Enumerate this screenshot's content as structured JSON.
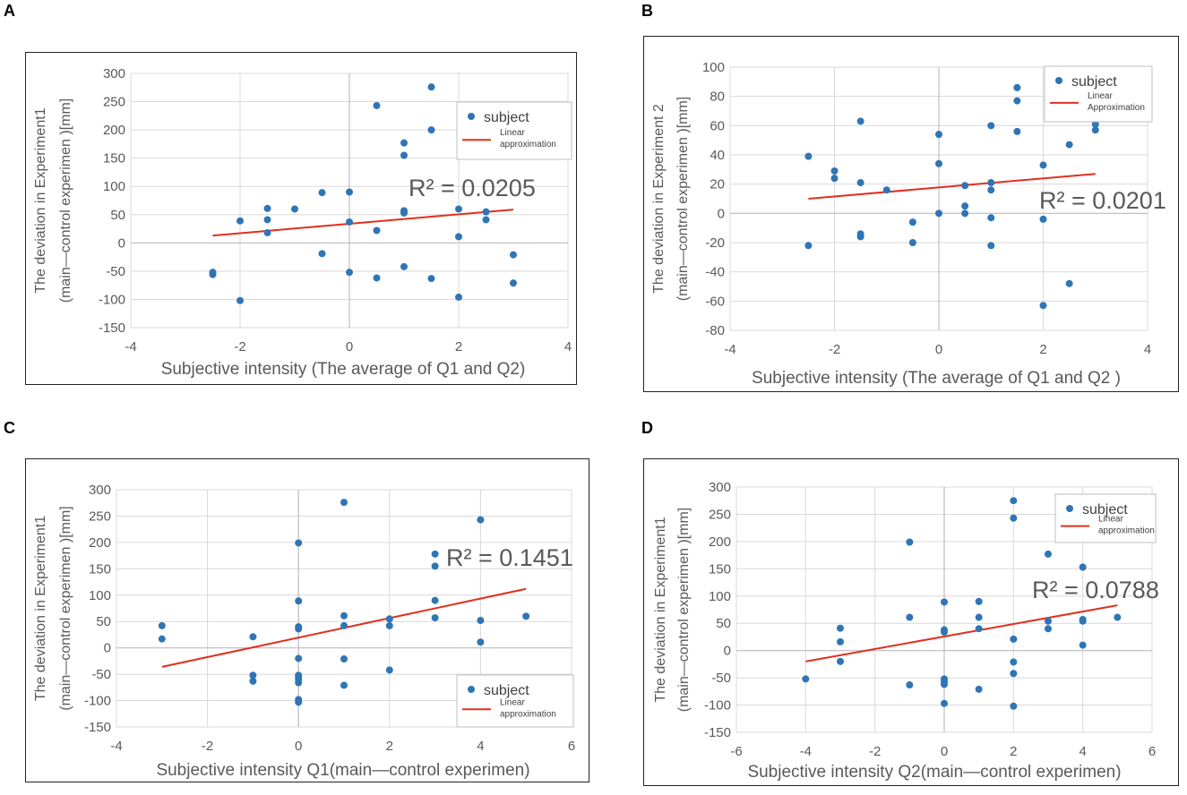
{
  "colors": {
    "point": "#2e75b6",
    "line": "#e0301e",
    "grid": "#d9d9d9",
    "axis": "#bfbfbf",
    "text": "#595959"
  },
  "chart_data": [
    {
      "panel": "A",
      "type": "scatter",
      "xlabel": "Subjective intensity (The average of Q1 and Q2)",
      "ylabel_line1": "The deviation in Experiment1",
      "ylabel_line2": "(main—control experimen )[mm]",
      "xlim": [
        -4,
        4
      ],
      "ylim": [
        -150,
        300
      ],
      "xticks": [
        -4,
        -2,
        0,
        2,
        4
      ],
      "yticks": [
        300,
        250,
        200,
        150,
        100,
        50,
        0,
        -50,
        -100,
        -150
      ],
      "legend": {
        "points": "subject",
        "line_1": "Linear",
        "line_2": "approximation"
      },
      "r2": "R² = 0.0205",
      "trend": [
        [
          -2.5,
          13
        ],
        [
          3,
          59
        ]
      ],
      "points": [
        [
          -2.5,
          -52
        ],
        [
          -2.5,
          -56
        ],
        [
          -2,
          39
        ],
        [
          -2,
          -102
        ],
        [
          -1.5,
          61
        ],
        [
          -1.5,
          41
        ],
        [
          -1.5,
          18
        ],
        [
          -1,
          60
        ],
        [
          -0.5,
          89
        ],
        [
          -0.5,
          -19
        ],
        [
          0,
          90
        ],
        [
          0,
          37
        ],
        [
          0,
          -52
        ],
        [
          0.5,
          243
        ],
        [
          0.5,
          22
        ],
        [
          0.5,
          -62
        ],
        [
          1,
          177
        ],
        [
          1,
          155
        ],
        [
          1,
          57
        ],
        [
          1,
          53
        ],
        [
          1,
          -42
        ],
        [
          1.5,
          276
        ],
        [
          1.5,
          200
        ],
        [
          1.5,
          -63
        ],
        [
          2,
          60
        ],
        [
          2,
          11
        ],
        [
          2,
          -96
        ],
        [
          2.5,
          55
        ],
        [
          2.5,
          41
        ],
        [
          3,
          -21
        ],
        [
          3,
          -71
        ]
      ]
    },
    {
      "panel": "B",
      "type": "scatter",
      "xlabel": "Subjective intensity (The average of Q1 and Q2 )",
      "ylabel_line1": "The deviation in Experiment 2",
      "ylabel_line2": "(main—control experimen )[mm]",
      "xlim": [
        -4,
        4
      ],
      "ylim": [
        -80,
        100
      ],
      "xticks": [
        -4,
        -2,
        0,
        2,
        4
      ],
      "yticks": [
        100,
        80,
        60,
        40,
        20,
        0,
        -20,
        -40,
        -60,
        -80
      ],
      "legend": {
        "points": "subject",
        "line_1": "Linear",
        "line_2": "Approximation"
      },
      "r2": "R² = 0.0201",
      "trend": [
        [
          -2.5,
          10
        ],
        [
          3,
          27
        ]
      ],
      "points": [
        [
          -2.5,
          39
        ],
        [
          -2.5,
          -22
        ],
        [
          -2,
          29
        ],
        [
          -2,
          24
        ],
        [
          -1.5,
          63
        ],
        [
          -1.5,
          21
        ],
        [
          -1.5,
          -14
        ],
        [
          -1.5,
          -16
        ],
        [
          -1,
          16
        ],
        [
          -0.5,
          -6
        ],
        [
          -0.5,
          -20
        ],
        [
          0,
          54
        ],
        [
          0,
          34
        ],
        [
          0,
          0
        ],
        [
          0.5,
          19
        ],
        [
          0.5,
          5
        ],
        [
          0.5,
          0
        ],
        [
          1,
          60
        ],
        [
          1,
          21
        ],
        [
          1,
          16
        ],
        [
          1,
          -3
        ],
        [
          1,
          -22
        ],
        [
          1.5,
          86
        ],
        [
          1.5,
          77
        ],
        [
          1.5,
          56
        ],
        [
          2,
          33
        ],
        [
          2,
          -4
        ],
        [
          2,
          -63
        ],
        [
          2.5,
          47
        ],
        [
          2.5,
          -48
        ],
        [
          3,
          61
        ],
        [
          3,
          57
        ]
      ]
    },
    {
      "panel": "C",
      "type": "scatter",
      "xlabel": "Subjective intensity Q1(main—control experimen)",
      "ylabel_line1": "The deviation in Experiment1",
      "ylabel_line2": "(main—control experimen )[mm]",
      "xlim": [
        -4,
        6
      ],
      "ylim": [
        -150,
        300
      ],
      "xticks": [
        -4,
        -2,
        0,
        2,
        4,
        6
      ],
      "yticks": [
        300,
        250,
        200,
        150,
        100,
        50,
        0,
        -50,
        -100,
        -150
      ],
      "legend": {
        "points": "subject",
        "line_1": "Linear",
        "line_2": "approximation"
      },
      "r2": "R² = 0.1451",
      "trend": [
        [
          -3,
          -36
        ],
        [
          5,
          112
        ]
      ],
      "points": [
        [
          -3,
          42
        ],
        [
          -3,
          17
        ],
        [
          -1,
          21
        ],
        [
          -1,
          -52
        ],
        [
          -1,
          -63
        ],
        [
          0,
          199
        ],
        [
          0,
          89
        ],
        [
          0,
          40
        ],
        [
          0,
          36
        ],
        [
          0,
          -20
        ],
        [
          0,
          -52
        ],
        [
          0,
          -55
        ],
        [
          0,
          -60
        ],
        [
          0,
          -66
        ],
        [
          0,
          -98
        ],
        [
          0,
          -103
        ],
        [
          1,
          276
        ],
        [
          1,
          61
        ],
        [
          1,
          42
        ],
        [
          1,
          -21
        ],
        [
          1,
          -71
        ],
        [
          2,
          55
        ],
        [
          2,
          42
        ],
        [
          2,
          -42
        ],
        [
          3,
          178
        ],
        [
          3,
          155
        ],
        [
          3,
          90
        ],
        [
          3,
          57
        ],
        [
          4,
          243
        ],
        [
          4,
          52
        ],
        [
          4,
          11
        ],
        [
          5,
          60
        ]
      ]
    },
    {
      "panel": "D",
      "type": "scatter",
      "xlabel": "Subjective intensity Q2(main—control experimen)",
      "ylabel_line1": "The deviation in Experiment1",
      "ylabel_line2": "(main—control experimen )[mm]",
      "xlim": [
        -6,
        6
      ],
      "ylim": [
        -150,
        300
      ],
      "xticks": [
        -6,
        -4,
        -2,
        0,
        2,
        4,
        6
      ],
      "yticks": [
        300,
        250,
        200,
        150,
        100,
        50,
        0,
        -50,
        -100,
        -150
      ],
      "legend": {
        "points": "subject",
        "line_1": "Linear",
        "line_2": "approximation"
      },
      "r2": "R² = 0.0788",
      "trend": [
        [
          -4,
          -20
        ],
        [
          5,
          83
        ]
      ],
      "points": [
        [
          -4,
          -52
        ],
        [
          -3,
          41
        ],
        [
          -3,
          16
        ],
        [
          -3,
          -20
        ],
        [
          -1,
          199
        ],
        [
          -1,
          61
        ],
        [
          -1,
          -63
        ],
        [
          0,
          89
        ],
        [
          0,
          38
        ],
        [
          0,
          34
        ],
        [
          0,
          -52
        ],
        [
          0,
          -57
        ],
        [
          0,
          -62
        ],
        [
          0,
          -97
        ],
        [
          1,
          90
        ],
        [
          1,
          61
        ],
        [
          1,
          40
        ],
        [
          1,
          -71
        ],
        [
          2,
          275
        ],
        [
          2,
          243
        ],
        [
          2,
          21
        ],
        [
          2,
          -21
        ],
        [
          2,
          -42
        ],
        [
          2,
          -102
        ],
        [
          3,
          177
        ],
        [
          3,
          54
        ],
        [
          3,
          40
        ],
        [
          4,
          153
        ],
        [
          4,
          57
        ],
        [
          4,
          54
        ],
        [
          4,
          10
        ],
        [
          5,
          61
        ]
      ]
    }
  ]
}
